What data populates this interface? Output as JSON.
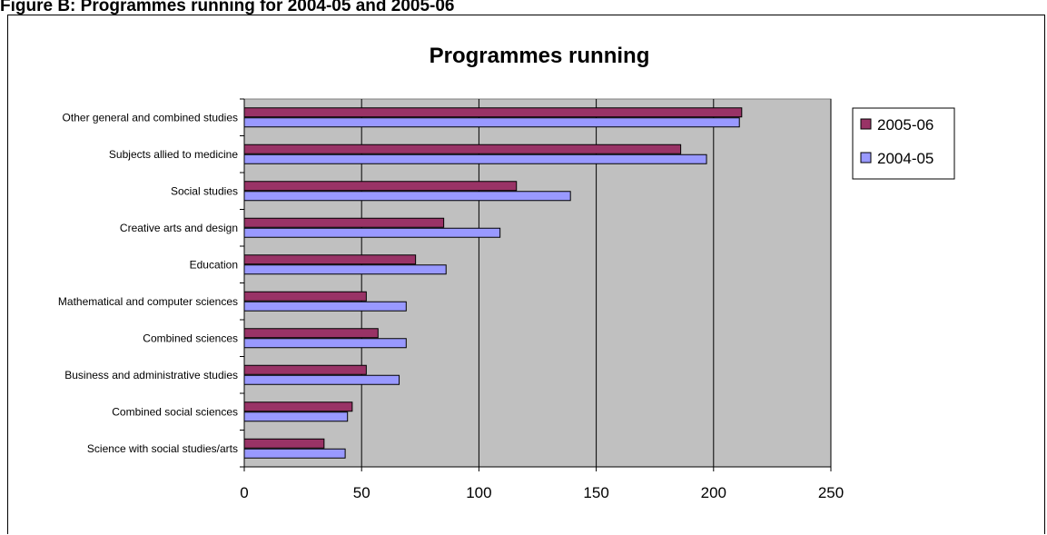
{
  "figure": {
    "caption": "Figure B: Programmes running for 2004-05 and 2005-06"
  },
  "colors": {
    "plot_background": "#c0c0c0",
    "series_2005_06": "#993366",
    "series_2004_05": "#9999ff",
    "gridline": "#000000",
    "bar_outline": "#000000"
  },
  "chart_data": {
    "type": "bar",
    "orientation": "horizontal",
    "title": "Programmes running",
    "xlabel": "",
    "ylabel": "",
    "xlim": [
      0,
      250
    ],
    "xticks": [
      0,
      50,
      100,
      150,
      200,
      250
    ],
    "grid": true,
    "legend_position": "right",
    "categories": [
      "Other general and combined studies",
      "Subjects allied to medicine",
      "Social studies",
      "Creative arts and design",
      "Education",
      "Mathematical and computer sciences",
      "Combined sciences",
      "Business and administrative studies",
      "Combined social sciences",
      "Science with social studies/arts"
    ],
    "series": [
      {
        "name": "2005-06",
        "color": "#993366",
        "values": [
          212,
          186,
          116,
          85,
          73,
          52,
          57,
          52,
          46,
          34
        ]
      },
      {
        "name": "2004-05",
        "color": "#9999ff",
        "values": [
          211,
          197,
          139,
          109,
          86,
          69,
          69,
          66,
          44,
          43
        ]
      }
    ]
  }
}
